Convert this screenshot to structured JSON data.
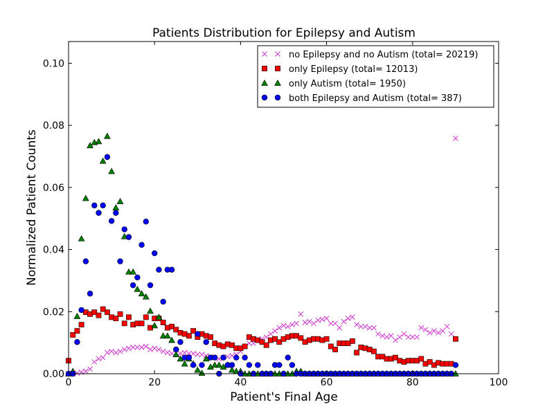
{
  "chart_data": {
    "type": "scatter",
    "title": "Patients Distribution for Epilepsy and Autism",
    "xlabel": "Patient's Final Age",
    "ylabel": "Normalized Patient Counts",
    "xlim": [
      0,
      100
    ],
    "ylim": [
      0,
      0.107
    ],
    "x_ticks": [
      0,
      20,
      40,
      60,
      80,
      100
    ],
    "x_tick_labels": [
      "0",
      "20",
      "40",
      "60",
      "80",
      "100"
    ],
    "y_ticks": [
      0.0,
      0.02,
      0.04,
      0.06,
      0.08,
      0.1
    ],
    "y_tick_labels": [
      "0.00",
      "0.02",
      "0.04",
      "0.06",
      "0.08",
      "0.10"
    ],
    "grid": false,
    "legend_position": "top-right",
    "series": [
      {
        "name": "no Epilepsy and no Autism (total= 20219)",
        "marker": "x",
        "color": "#cc33cc",
        "x": [
          0,
          1,
          2,
          3,
          4,
          5,
          6,
          7,
          8,
          9,
          10,
          11,
          12,
          13,
          14,
          15,
          16,
          17,
          18,
          19,
          20,
          21,
          22,
          23,
          24,
          25,
          26,
          27,
          28,
          29,
          30,
          31,
          32,
          33,
          34,
          35,
          36,
          37,
          38,
          39,
          40,
          41,
          42,
          43,
          44,
          45,
          46,
          47,
          48,
          49,
          50,
          51,
          52,
          53,
          54,
          55,
          56,
          57,
          58,
          59,
          60,
          61,
          62,
          63,
          64,
          65,
          66,
          67,
          68,
          69,
          70,
          71,
          72,
          73,
          74,
          75,
          76,
          77,
          78,
          79,
          80,
          81,
          82,
          83,
          84,
          85,
          86,
          87,
          88,
          89,
          90
        ],
        "y": [
          0.0,
          0.0,
          0.0002,
          0.0005,
          0.0008,
          0.0015,
          0.0038,
          0.0048,
          0.0052,
          0.0068,
          0.0072,
          0.0068,
          0.0072,
          0.0078,
          0.0082,
          0.0085,
          0.0085,
          0.0085,
          0.0088,
          0.0078,
          0.0082,
          0.0078,
          0.0072,
          0.0068,
          0.0065,
          0.0068,
          0.0065,
          0.0068,
          0.0065,
          0.0065,
          0.0062,
          0.0062,
          0.0058,
          0.0055,
          0.0052,
          0.0048,
          0.0052,
          0.0055,
          0.0058,
          0.0062,
          0.0072,
          0.0088,
          0.0098,
          0.0098,
          0.0108,
          0.0112,
          0.0118,
          0.0128,
          0.0138,
          0.0148,
          0.0155,
          0.0152,
          0.0158,
          0.0162,
          0.0192,
          0.0165,
          0.0168,
          0.0162,
          0.0172,
          0.0175,
          0.0178,
          0.0162,
          0.0162,
          0.0148,
          0.0168,
          0.0178,
          0.0182,
          0.0158,
          0.0152,
          0.0152,
          0.0148,
          0.0148,
          0.0128,
          0.0122,
          0.0118,
          0.0122,
          0.0108,
          0.0118,
          0.0128,
          0.0118,
          0.0118,
          0.0118,
          0.0148,
          0.0142,
          0.0132,
          0.0138,
          0.0132,
          0.0138,
          0.0152,
          0.0128,
          0.0758
        ]
      },
      {
        "name": "only Epilepsy (total= 12013)",
        "marker": "s",
        "color": "#ff0000",
        "x": [
          0,
          1,
          2,
          3,
          4,
          5,
          6,
          7,
          8,
          9,
          10,
          11,
          12,
          13,
          14,
          15,
          16,
          17,
          18,
          19,
          20,
          21,
          22,
          23,
          24,
          25,
          26,
          27,
          28,
          29,
          30,
          31,
          32,
          33,
          34,
          35,
          36,
          37,
          38,
          39,
          40,
          41,
          42,
          43,
          44,
          45,
          46,
          47,
          48,
          49,
          50,
          51,
          52,
          53,
          54,
          55,
          56,
          57,
          58,
          59,
          60,
          61,
          62,
          63,
          64,
          65,
          66,
          67,
          68,
          69,
          70,
          71,
          72,
          73,
          74,
          75,
          76,
          77,
          78,
          79,
          80,
          81,
          82,
          83,
          84,
          85,
          86,
          87,
          88,
          89,
          90
        ],
        "y": [
          0.0042,
          0.0125,
          0.0138,
          0.0158,
          0.0198,
          0.0192,
          0.0198,
          0.0188,
          0.0208,
          0.0198,
          0.0182,
          0.0178,
          0.0192,
          0.0162,
          0.0182,
          0.0158,
          0.0162,
          0.0162,
          0.0182,
          0.0148,
          0.0178,
          0.0178,
          0.0165,
          0.0148,
          0.0152,
          0.0142,
          0.0132,
          0.0128,
          0.0122,
          0.0138,
          0.0118,
          0.0128,
          0.0122,
          0.0118,
          0.0098,
          0.0092,
          0.0088,
          0.0095,
          0.0092,
          0.0082,
          0.0082,
          0.0088,
          0.0118,
          0.0112,
          0.0108,
          0.0102,
          0.0092,
          0.0108,
          0.0112,
          0.0102,
          0.0112,
          0.0118,
          0.0122,
          0.0122,
          0.0115,
          0.0102,
          0.0108,
          0.0112,
          0.0112,
          0.0108,
          0.0112,
          0.0088,
          0.0078,
          0.0098,
          0.0098,
          0.0098,
          0.0105,
          0.0068,
          0.0085,
          0.0082,
          0.0078,
          0.0072,
          0.0055,
          0.0055,
          0.0048,
          0.0048,
          0.0052,
          0.0042,
          0.0038,
          0.0042,
          0.0042,
          0.0042,
          0.0048,
          0.0032,
          0.0038,
          0.0028,
          0.0035,
          0.0032,
          0.0032,
          0.0032,
          0.0112
        ]
      },
      {
        "name": "only Autism (total= 1950)",
        "marker": "^",
        "color": "#008000",
        "x": [
          0,
          1,
          2,
          3,
          4,
          5,
          6,
          7,
          8,
          9,
          10,
          11,
          12,
          13,
          14,
          15,
          16,
          17,
          18,
          19,
          20,
          21,
          22,
          23,
          24,
          25,
          26,
          27,
          28,
          29,
          30,
          31,
          32,
          33,
          34,
          35,
          36,
          37,
          38,
          39,
          40,
          41,
          42,
          43,
          44,
          45,
          46,
          47,
          48,
          49,
          50,
          51,
          52,
          53,
          54,
          55,
          56,
          57,
          58,
          59,
          60,
          61,
          62,
          63,
          64,
          65,
          66,
          67,
          68,
          69,
          70,
          71,
          72,
          73,
          74,
          75,
          76,
          77,
          78,
          79,
          80,
          81,
          82,
          83,
          84,
          85,
          86,
          87,
          88,
          89,
          90
        ],
        "y": [
          0.0,
          0.0008,
          0.0185,
          0.0435,
          0.0565,
          0.0735,
          0.0745,
          0.0748,
          0.0685,
          0.0765,
          0.0652,
          0.0535,
          0.0555,
          0.0442,
          0.0328,
          0.0328,
          0.0272,
          0.0258,
          0.0248,
          0.0202,
          0.0155,
          0.0182,
          0.0122,
          0.0122,
          0.0108,
          0.0062,
          0.0048,
          0.0032,
          0.0048,
          0.0032,
          0.0012,
          0.0002,
          0.0048,
          0.0022,
          0.0028,
          0.0028,
          0.0022,
          0.0028,
          0.0012,
          0.0008,
          0.0008,
          0.0,
          0.0,
          0.0,
          0.0,
          0.0,
          0.0,
          0.0,
          0.0,
          0.0,
          0.0,
          0.0,
          0.0,
          0.0008,
          0.0008,
          0.0,
          0.0,
          0.0,
          0.0,
          0.0,
          0.0,
          0.0,
          0.0,
          0.0,
          0.0,
          0.0,
          0.0,
          0.0,
          0.0,
          0.0,
          0.0,
          0.0,
          0.0,
          0.0,
          0.0,
          0.0,
          0.0,
          0.0,
          0.0,
          0.0,
          0.0,
          0.0,
          0.0,
          0.0,
          0.0,
          0.0,
          0.0,
          0.0,
          0.0,
          0.0,
          0.0
        ]
      },
      {
        "name": "both Epilepsy and Autism (total= 387)",
        "marker": "o",
        "color": "#0000ff",
        "x": [
          0,
          1,
          2,
          3,
          4,
          5,
          6,
          7,
          8,
          9,
          10,
          11,
          12,
          13,
          14,
          15,
          16,
          17,
          18,
          19,
          20,
          21,
          22,
          23,
          24,
          25,
          26,
          27,
          28,
          29,
          30,
          31,
          32,
          33,
          34,
          35,
          36,
          37,
          38,
          39,
          40,
          41,
          42,
          43,
          44,
          45,
          46,
          47,
          48,
          49,
          50,
          51,
          52,
          53,
          54,
          55,
          56,
          57,
          58,
          59,
          60,
          61,
          62,
          63,
          64,
          65,
          66,
          67,
          68,
          69,
          70,
          71,
          72,
          73,
          74,
          75,
          76,
          77,
          78,
          79,
          80,
          81,
          82,
          83,
          84,
          85,
          86,
          87,
          88,
          89,
          90
        ],
        "y": [
          0.0,
          0.0,
          0.0102,
          0.0205,
          0.0362,
          0.0258,
          0.0542,
          0.0518,
          0.0542,
          0.0698,
          0.0492,
          0.0518,
          0.0362,
          0.0465,
          0.044,
          0.0285,
          0.031,
          0.0415,
          0.049,
          0.0285,
          0.0388,
          0.0335,
          0.0232,
          0.0335,
          0.0335,
          0.0078,
          0.0102,
          0.0052,
          0.0052,
          0.0028,
          0.0128,
          0.0028,
          0.0102,
          0.0052,
          0.0052,
          0.0,
          0.0052,
          0.0028,
          0.0028,
          0.0052,
          0.0,
          0.0052,
          0.0028,
          0.0,
          0.0028,
          0.0,
          0.0,
          0.0,
          0.0028,
          0.0028,
          0.0,
          0.0052,
          0.0028,
          0.0,
          0.0,
          0.0,
          0.0,
          0.0,
          0.0,
          0.0,
          0.0,
          0.0,
          0.0,
          0.0,
          0.0,
          0.0,
          0.0,
          0.0,
          0.0,
          0.0,
          0.0,
          0.0,
          0.0,
          0.0,
          0.0,
          0.0,
          0.0,
          0.0,
          0.0,
          0.0,
          0.0,
          0.0,
          0.0,
          0.0,
          0.0,
          0.0,
          0.0,
          0.0,
          0.0,
          0.0,
          0.0028
        ]
      }
    ]
  }
}
